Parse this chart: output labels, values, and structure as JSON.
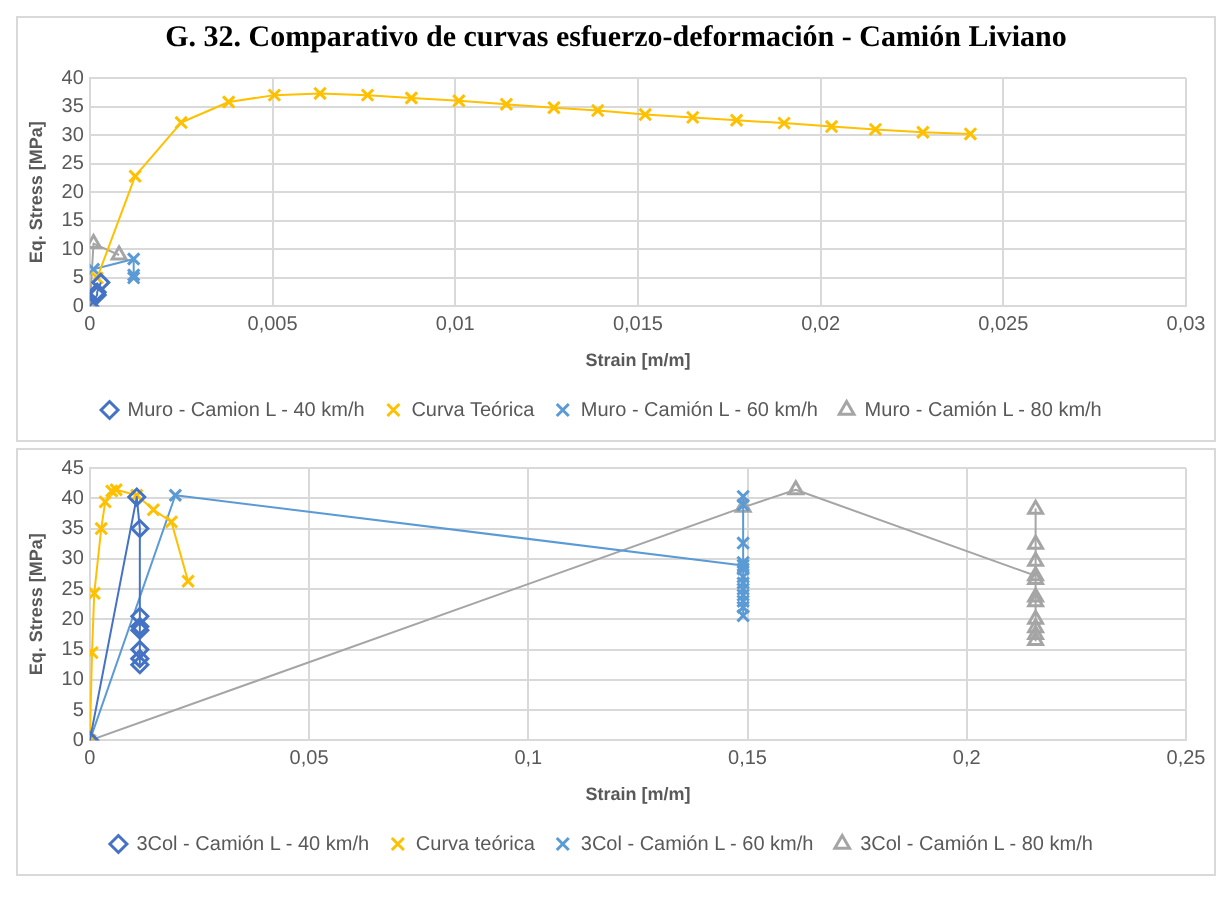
{
  "chart_data": [
    {
      "type": "line",
      "title": "G. 32. Comparativo de curvas esfuerzo-deformación - Camión Liviano",
      "xlabel": "Strain [m/m]",
      "ylabel": "Eq. Stress [MPa]",
      "xlim": [
        0,
        0.03
      ],
      "xticks": [
        0,
        {
          "value": 0.005,
          "label": "0,005"
        },
        {
          "value": 0.01,
          "label": "0,01"
        },
        {
          "value": 0.015,
          "label": "0,015"
        },
        {
          "value": 0.02,
          "label": "0,02"
        },
        {
          "value": 0.025,
          "label": "0,025"
        },
        {
          "value": 0.03,
          "label": "0,03"
        }
      ],
      "ylim": [
        0,
        40
      ],
      "yticks": [
        0,
        5,
        10,
        15,
        20,
        25,
        30,
        35,
        40
      ],
      "grid": true,
      "legend": "bottom",
      "series": [
        {
          "name": "Muro - Camion L - 40 km/h",
          "color": "#4472c4",
          "marker": "diamond",
          "x": [
            0,
            0.0002,
            0.0002,
            0.0003
          ],
          "values": [
            0,
            2,
            2.5,
            4.2
          ]
        },
        {
          "name": "Curva Teórica",
          "color": "#ffc000",
          "marker": "cross",
          "x": [
            0.0002,
            0.00124,
            0.0025,
            0.0038,
            0.00505,
            0.0063,
            0.0076,
            0.0088,
            0.0101,
            0.0114,
            0.0127,
            0.0139,
            0.0152,
            0.0165,
            0.0177,
            0.019,
            0.0203,
            0.0215,
            0.0228,
            0.0241
          ],
          "values": [
            5,
            22.8,
            32.2,
            35.8,
            37,
            37.3,
            37,
            36.5,
            36,
            35.4,
            34.8,
            34.3,
            33.6,
            33.1,
            32.6,
            32.1,
            31.5,
            31,
            30.5,
            30.2
          ]
        },
        {
          "name": "Muro - Camión L - 60 km/h",
          "color": "#5b9bd5",
          "marker": "cross",
          "x": [
            0.0001,
            0.0012,
            0.0012,
            0.0012
          ],
          "values": [
            6.5,
            8.3,
            5.5,
            5
          ]
        },
        {
          "name": "Muro - Camión L - 80 km/h",
          "color": "#a5a5a5",
          "marker": "triangle",
          "x": [
            0,
            0.0001,
            0.0008
          ],
          "values": [
            0,
            11,
            9
          ]
        }
      ]
    },
    {
      "type": "line",
      "xlabel": "Strain [m/m]",
      "ylabel": "Eq. Stress [MPa]",
      "xlim": [
        0,
        0.25
      ],
      "xticks": [
        0,
        {
          "value": 0.05,
          "label": "0,05"
        },
        {
          "value": 0.1,
          "label": "0,1"
        },
        {
          "value": 0.15,
          "label": "0,15"
        },
        {
          "value": 0.2,
          "label": "0,2"
        },
        {
          "value": 0.25,
          "label": "0,25"
        }
      ],
      "ylim": [
        0,
        45
      ],
      "yticks": [
        0,
        5,
        10,
        15,
        20,
        25,
        30,
        35,
        40,
        45
      ],
      "grid": true,
      "legend": "bottom",
      "series": [
        {
          "name": "3Col - Camión L - 40 km/h",
          "color": "#4472c4",
          "marker": "diamond",
          "x": [
            0,
            0.0107,
            0.0114,
            0.0114,
            0.0114,
            0.0114,
            0.0114,
            0.0114,
            0.0114
          ],
          "values": [
            0,
            40.2,
            35,
            20.5,
            18.8,
            18.2,
            15,
            13.5,
            12.5
          ]
        },
        {
          "name": "Curva teórica",
          "color": "#ffc000",
          "marker": "cross",
          "x": [
            0,
            0.0005,
            0.001,
            0.0026,
            0.0035,
            0.005,
            0.006,
            0.0107,
            0.0145,
            0.0186,
            0.0224
          ],
          "values": [
            0,
            14.5,
            24.3,
            35,
            39.4,
            41.2,
            41.4,
            40.5,
            38.1,
            36.1,
            26.3
          ]
        },
        {
          "name": "3Col - Camión L - 60 km/h",
          "color": "#5b9bd5",
          "marker": "cross",
          "x": [
            0,
            0.0195,
            0.149,
            0.149,
            0.149,
            0.149,
            0.149,
            0.149,
            0.149,
            0.149,
            0.149,
            0.149,
            0.149,
            0.149,
            0.149
          ],
          "values": [
            0,
            40.5,
            28.9,
            40.3,
            38.9,
            32.6,
            29.4,
            28.3,
            27,
            26,
            25,
            24,
            23,
            22,
            20.6
          ]
        },
        {
          "name": "3Col - Camión L - 80 km/h",
          "color": "#a5a5a5",
          "marker": "triangle",
          "x": [
            0,
            0.149,
            0.161,
            0.2157,
            0.2157,
            0.2157,
            0.2157,
            0.2157,
            0.2157,
            0.2157,
            0.2157,
            0.2157,
            0.2157,
            0.2157
          ],
          "values": [
            0,
            38.5,
            41.4,
            27.2,
            38.2,
            32.4,
            29.6,
            26.6,
            23.7,
            22.9,
            20,
            18.6,
            17.5,
            16.5
          ]
        }
      ]
    }
  ]
}
